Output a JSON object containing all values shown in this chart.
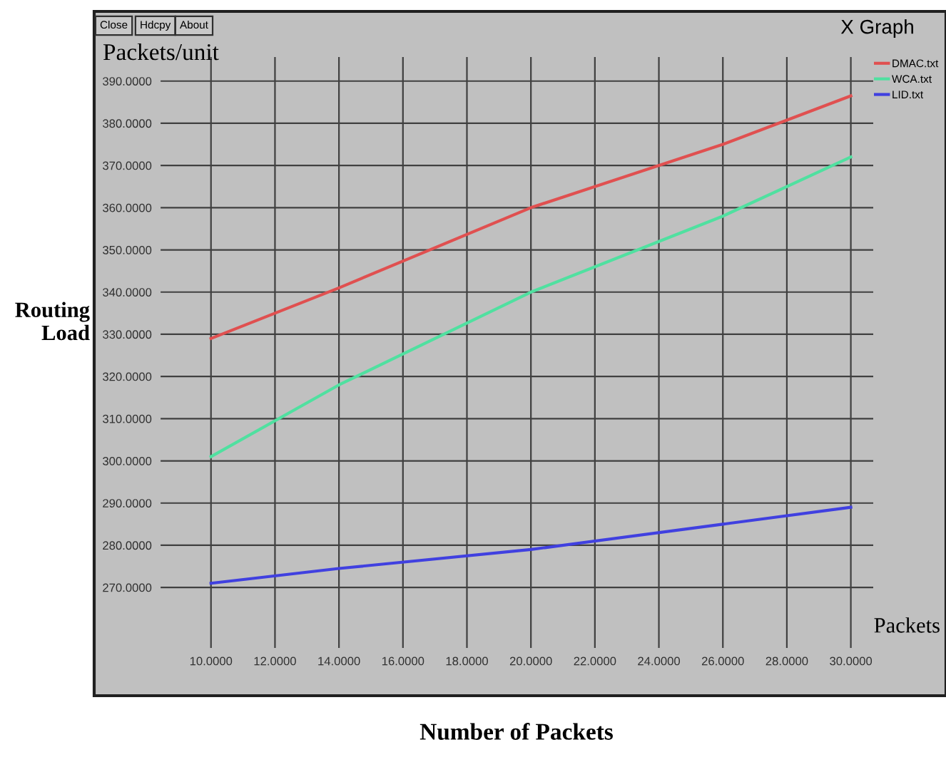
{
  "chart_data": {
    "type": "line",
    "title": "X Graph",
    "xlabel": "Number of Packets",
    "ylabel": "Routing Load",
    "annotations": [
      "Close",
      "Hdcpy",
      "About",
      "Packets/unit",
      "Packets"
    ],
    "x": [
      10,
      14,
      20,
      26,
      30
    ],
    "series": [
      {
        "name": "DMAC.txt",
        "color": "#e05050",
        "values": [
          329,
          341,
          360,
          375,
          386.5
        ]
      },
      {
        "name": "WCA.txt",
        "color": "#50e0a0",
        "values": [
          301,
          318,
          340,
          358,
          372
        ]
      },
      {
        "name": "LID.txt",
        "color": "#4040e0",
        "values": [
          271,
          274.5,
          279,
          285,
          289
        ]
      }
    ],
    "xlim": [
      8.4,
      30.7
    ],
    "ylim": [
      255.5,
      395.7
    ],
    "xticks": [
      {
        "value": 10,
        "label": "10.0000"
      },
      {
        "value": 12,
        "label": "12.0000"
      },
      {
        "value": 14,
        "label": "14.0000"
      },
      {
        "value": 16,
        "label": "16.0000"
      },
      {
        "value": 18,
        "label": "18.0000"
      },
      {
        "value": 20,
        "label": "20.0000"
      },
      {
        "value": 22,
        "label": "22.0000"
      },
      {
        "value": 24,
        "label": "24.0000"
      },
      {
        "value": 26,
        "label": "26.0000"
      },
      {
        "value": 28,
        "label": "28.0000"
      },
      {
        "value": 30,
        "label": "30.0000"
      }
    ],
    "yticks": [
      {
        "value": 270,
        "label": "270.0000"
      },
      {
        "value": 280,
        "label": "280.0000"
      },
      {
        "value": 290,
        "label": "290.0000"
      },
      {
        "value": 300,
        "label": "300.0000"
      },
      {
        "value": 310,
        "label": "310.0000"
      },
      {
        "value": 320,
        "label": "320.0000"
      },
      {
        "value": 330,
        "label": "330.0000"
      },
      {
        "value": 340,
        "label": "340.0000"
      },
      {
        "value": 350,
        "label": "350.0000"
      },
      {
        "value": 360,
        "label": "360.0000"
      },
      {
        "value": 370,
        "label": "370.0000"
      },
      {
        "value": 380,
        "label": "380.0000"
      },
      {
        "value": 390,
        "label": "390.0000"
      }
    ],
    "grid": true,
    "legend": "top right",
    "marker": "none",
    "line_style": "solid"
  }
}
